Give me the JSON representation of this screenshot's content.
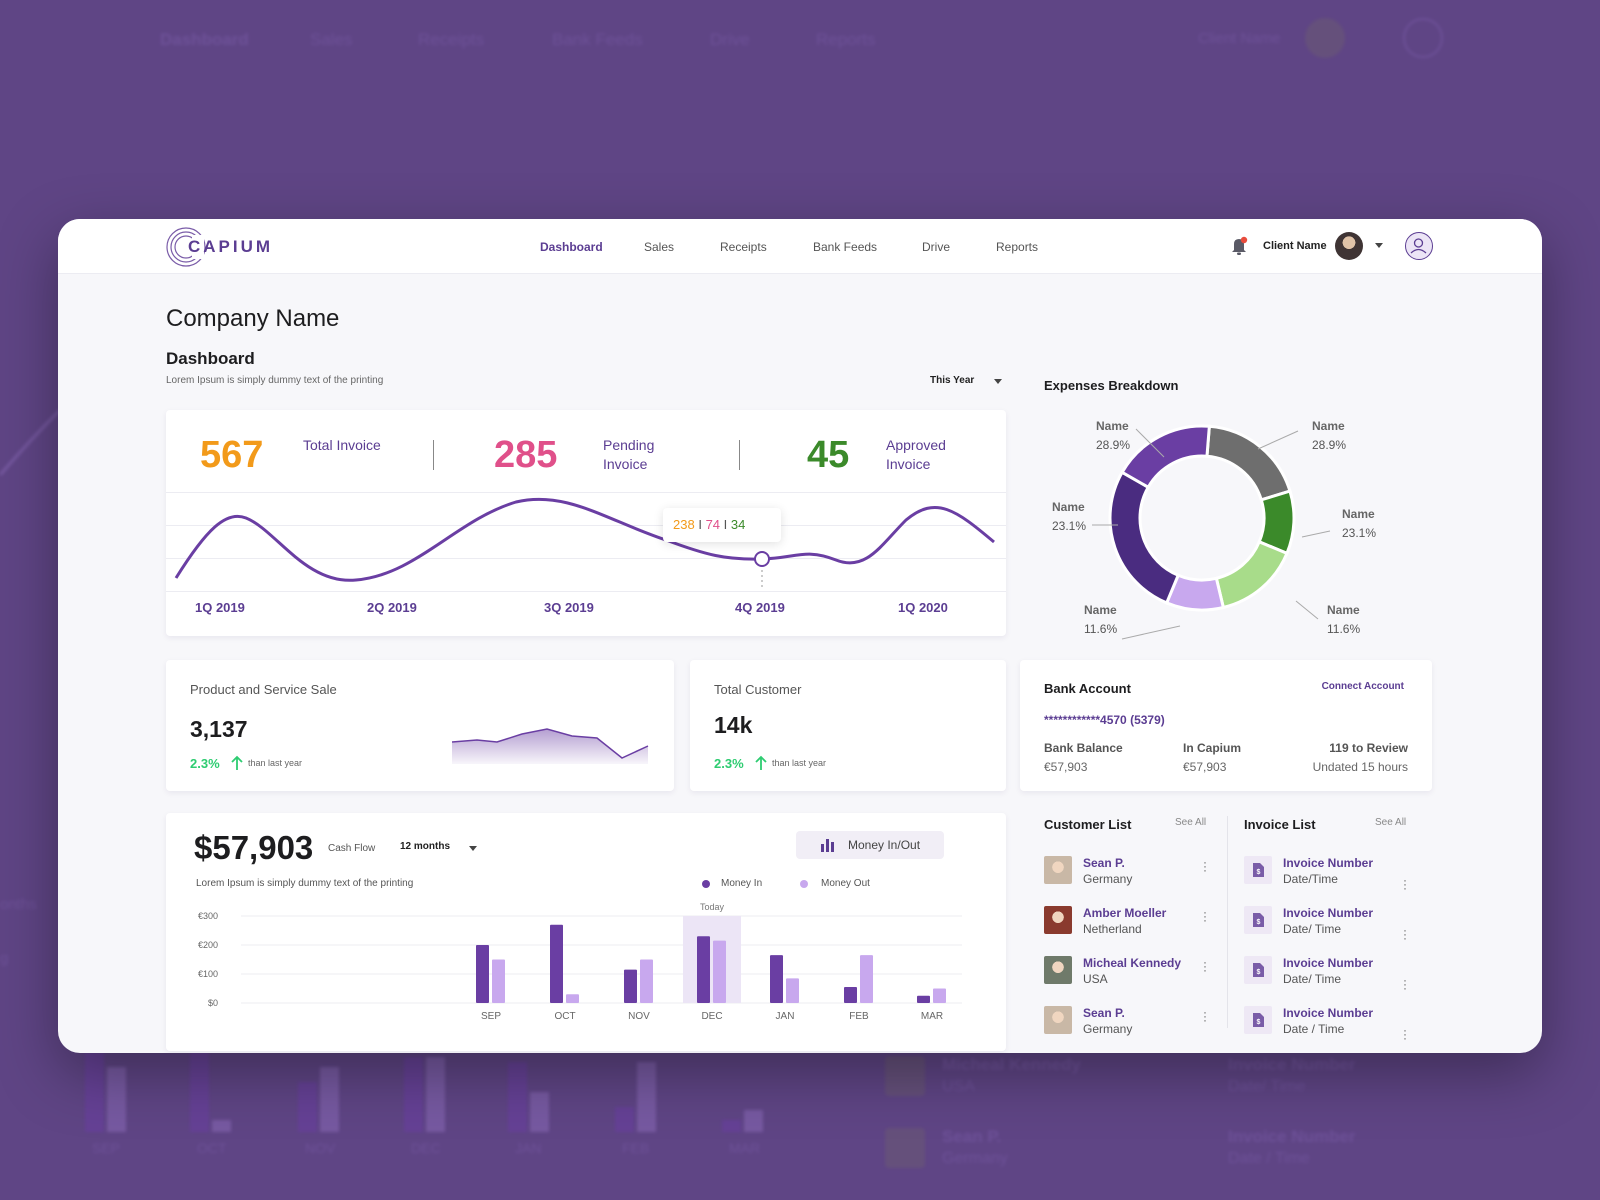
{
  "app": {
    "logo_text": "CAPIUM"
  },
  "nav": {
    "items": [
      {
        "label": "Dashboard",
        "active": true
      },
      {
        "label": "Sales"
      },
      {
        "label": "Receipts"
      },
      {
        "label": "Bank Feeds"
      },
      {
        "label": "Drive"
      },
      {
        "label": "Reports"
      }
    ],
    "client_name": "Client Name"
  },
  "page": {
    "company_name": "Company Name",
    "dashboard_title": "Dashboard",
    "dashboard_subtitle": "Lorem Ipsum is simply dummy text of the printing",
    "period_select": "This Year"
  },
  "invoices": {
    "kpis": [
      {
        "value": "567",
        "label": "Total Invoice",
        "color": "#f29a1a"
      },
      {
        "value": "285",
        "label": "Pending Invoice",
        "color": "#e0508a"
      },
      {
        "value": "45",
        "label": "Approved Invoice",
        "color": "#3b8a2a"
      }
    ],
    "quarters": [
      "1Q 2019",
      "2Q 2019",
      "3Q 2019",
      "4Q 2019",
      "1Q 2020"
    ],
    "tooltip": {
      "a": "238",
      "sep1": "I",
      "b": "74",
      "sep2": "I",
      "c": "34"
    }
  },
  "expenses": {
    "title": "Expenses Breakdown",
    "slices": [
      {
        "name": "Name",
        "pct": "28.9%",
        "color": "#6e6e6e"
      },
      {
        "name": "Name",
        "pct": "23.1%",
        "color": "#3b8a2a"
      },
      {
        "name": "Name",
        "pct": "11.6%",
        "color": "#a8dc8a"
      },
      {
        "name": "Name",
        "pct": "11.6%",
        "color": "#c8a8ee"
      },
      {
        "name": "Name",
        "pct": "23.1%",
        "color": "#4a2c80"
      },
      {
        "name": "Name",
        "pct": "28.9%",
        "color": "#6a3ea3"
      }
    ]
  },
  "stats": {
    "product_sale": {
      "title": "Product and Service Sale",
      "value": "3,137",
      "pct": "2.3%",
      "note": "than last year"
    },
    "customers": {
      "title": "Total Customer",
      "value": "14k",
      "pct": "2.3%",
      "note": "than last year"
    }
  },
  "bank": {
    "title": "Bank Account",
    "connect": "Connect Account",
    "account": "************4570 (5379)",
    "balance_label": "Bank Balance",
    "balance_value": "€57,903",
    "capium_label": "In Capium",
    "capium_value": "€57,903",
    "review_label": "119 to Review",
    "review_value": "Undated 15 hours"
  },
  "cashflow": {
    "amount": "$57,903",
    "label": "Cash Flow",
    "period": "12 months",
    "button": "Money In/Out",
    "subtitle": "Lorem Ipsum is simply dummy text of the printing",
    "legend_in": "Money In",
    "legend_out": "Money Out",
    "today_label": "Today",
    "colors": {
      "in": "#6a3ea3",
      "out": "#c8a8ee"
    }
  },
  "chart_data": {
    "type": "bar",
    "categories": [
      "SEP",
      "OCT",
      "NOV",
      "DEC",
      "JAN",
      "FEB",
      "MAR"
    ],
    "y_tick_labels": [
      "€300",
      "€200",
      "€100",
      "$0"
    ],
    "series": [
      {
        "name": "Money In",
        "values": [
          200,
          270,
          115,
          230,
          165,
          55,
          25
        ]
      },
      {
        "name": "Money Out",
        "values": [
          150,
          30,
          150,
          215,
          85,
          165,
          50
        ]
      }
    ],
    "ylim": [
      0,
      300
    ],
    "highlight_category": "DEC"
  },
  "customers": {
    "title": "Customer List",
    "see_all": "See All",
    "items": [
      {
        "name": "Sean P.",
        "country": "Germany"
      },
      {
        "name": "Amber Moeller",
        "country": "Netherland"
      },
      {
        "name": "Micheal Kennedy",
        "country": "USA"
      },
      {
        "name": "Sean P.",
        "country": "Germany"
      }
    ]
  },
  "invoice_list": {
    "title": "Invoice List",
    "see_all": "See All",
    "items": [
      {
        "name": "Invoice Number",
        "date": "Date/Time"
      },
      {
        "name": "Invoice Number",
        "date": "Date/ Time"
      },
      {
        "name": "Invoice Number",
        "date": "Date/ Time"
      },
      {
        "name": "Invoice Number",
        "date": "Date / Time"
      }
    ]
  },
  "background": {
    "nav": [
      "Dashboard",
      "Sales",
      "Receipts",
      "Bank Feeds",
      "Drive",
      "Reports"
    ],
    "client_name": "Client Name",
    "months": [
      "SEP",
      "OCT",
      "NOV",
      "DEC",
      "JAN",
      "FEB",
      "MAR"
    ],
    "edge_text_1": "onths",
    "edge_text_2": "g",
    "list": [
      {
        "name": "Micheal Kennedy",
        "sub": "USA",
        "inv": "Invoice Number",
        "date": "Date/ Time"
      },
      {
        "name": "Sean P.",
        "sub": "Germany",
        "inv": "Invoice Number",
        "date": "Date / Time"
      }
    ]
  }
}
